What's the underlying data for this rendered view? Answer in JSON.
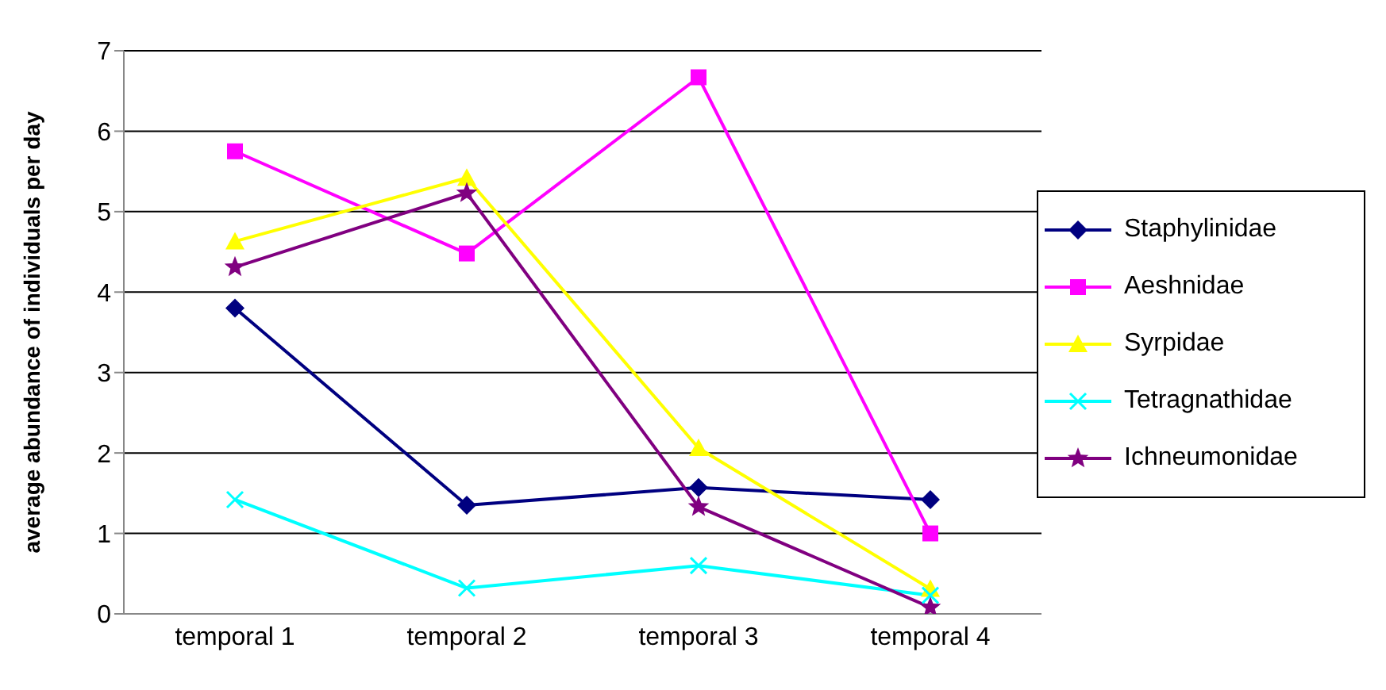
{
  "chart_data": {
    "type": "line",
    "ylabel": "average abundance of individuals per day",
    "categories": [
      "temporal 1",
      "temporal 2",
      "temporal 3",
      "temporal 4"
    ],
    "series": [
      {
        "name": "Staphylinidae",
        "color": "#000080",
        "marker": "diamond",
        "values": [
          3.8,
          1.35,
          1.57,
          1.42
        ]
      },
      {
        "name": "Aeshnidae",
        "color": "#ff00ff",
        "marker": "square",
        "values": [
          5.75,
          4.48,
          6.67,
          1.0
        ]
      },
      {
        "name": "Syrpidae",
        "color": "#ffff00",
        "marker": "triangle",
        "values": [
          4.63,
          5.42,
          2.06,
          0.31
        ]
      },
      {
        "name": "Tetragnathidae",
        "color": "#00ffff",
        "marker": "cross",
        "values": [
          1.42,
          0.32,
          0.6,
          0.23
        ]
      },
      {
        "name": "Ichneumonidae",
        "color": "#800080",
        "marker": "star",
        "values": [
          4.31,
          5.23,
          1.33,
          0.08
        ]
      }
    ],
    "ylim": [
      0,
      7
    ],
    "yticks": [
      0,
      1,
      2,
      3,
      4,
      5,
      6,
      7
    ],
    "grid": "y",
    "legend": "right",
    "line_style": "solid"
  }
}
